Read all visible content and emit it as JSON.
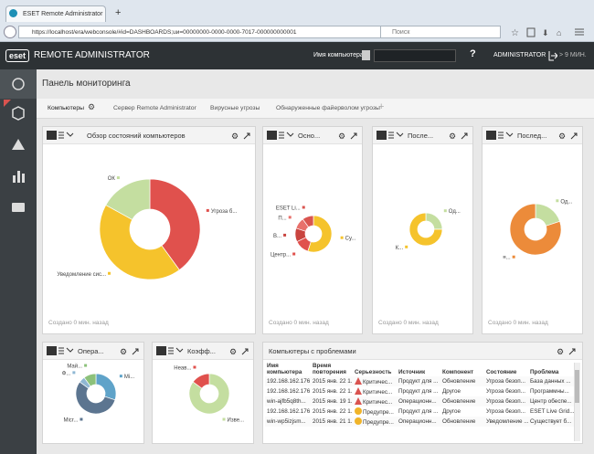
{
  "browser": {
    "tab_title": "ESET Remote Administrator",
    "url": "https://localhost/era/webconsole/#id=DASHBOARDS;uи=00000000-0000-0000-7017-000000000001",
    "search_placeholder": "Поиск"
  },
  "header": {
    "logo": "eset",
    "product": "REMOTE ADMINISTRATOR",
    "computer_name_label": "Имя компьютера",
    "help": "?",
    "user": "ADMINISTRATOR",
    "logout_timer": "> 9 МИН."
  },
  "page": {
    "title": "Панель мониторинга",
    "tabs": [
      "Компьютеры",
      "Сервер Remote Administrator",
      "Вирусные угрозы",
      "Обнаруженные файерволом угрозы"
    ]
  },
  "panels": [
    {
      "title": "Обзор состояний компьютеров",
      "footer": "Создано 0 мин. назад",
      "slices": [
        {
          "label": "Угроза б...",
          "value": 40,
          "color": "#e0514d"
        },
        {
          "label": "Уведомление сис...",
          "value": 43,
          "color": "#f5c32c"
        },
        {
          "label": "ОК",
          "value": 17,
          "color": "#c4dea0"
        }
      ]
    },
    {
      "title": "Осно...",
      "footer": "Создано 0 мин. назад",
      "slices": [
        {
          "label": "Су...",
          "value": 55,
          "color": "#f5c32c"
        },
        {
          "label": "Центр...",
          "value": 13,
          "color": "#e0514d"
        },
        {
          "label": "В...",
          "value": 12,
          "color": "#c9443f"
        },
        {
          "label": "П...",
          "value": 10,
          "color": "#e8706b"
        },
        {
          "label": "ESET Li...",
          "value": 10,
          "color": "#d95550"
        }
      ]
    },
    {
      "title": "После...",
      "footer": "Создано 0 мин. назад",
      "slices": [
        {
          "label": "Од...",
          "value": 25,
          "color": "#c4dea0"
        },
        {
          "label": "К...",
          "value": 75,
          "color": "#f5c32c"
        }
      ]
    },
    {
      "title": "Послед...",
      "footer": "Создано 0 мин. назад",
      "slices": [
        {
          "label": "Од...",
          "value": 20,
          "color": "#c4dea0"
        },
        {
          "label": "≡...",
          "value": 80,
          "color": "#ec8b3a"
        }
      ]
    },
    {
      "title": "Опера...",
      "slices": [
        {
          "label": "Mi...",
          "value": 30,
          "color": "#5fa3c9"
        },
        {
          "label": "Micr...",
          "value": 55,
          "color": "#5c7590"
        },
        {
          "label": "Ф...",
          "value": 5,
          "color": "#8fb7d3"
        },
        {
          "label": "Май...",
          "value": 10,
          "color": "#8cc17a"
        }
      ]
    },
    {
      "title": "Коэфф...",
      "slices": [
        {
          "label": "Изве...",
          "value": 85,
          "color": "#c4dea0"
        },
        {
          "label": "Неав...",
          "value": 15,
          "color": "#e0514d"
        }
      ]
    }
  ],
  "problems_table": {
    "title": "Компьютеры с проблемами",
    "columns": [
      "Имя компьютера",
      "Время повторения",
      "Серьезность",
      "Источник",
      "Компонент",
      "Состояние",
      "Проблема"
    ],
    "severity_icons": [
      "critical",
      "critical",
      "critical",
      "warning",
      "warning"
    ],
    "rows": [
      [
        "192.168.162.176",
        "2015 янв. 22 1...",
        "Критичес...",
        "Продукт для ...",
        "Обновление",
        "Угроза безоп...",
        "База данных ..."
      ],
      [
        "192.168.162.176",
        "2015 янв. 22 1...",
        "Критичес...",
        "Продукт для ...",
        "Другое",
        "Угроза безоп...",
        "Программны..."
      ],
      [
        "win-ajfb5q8th...",
        "2015 янв. 19 1...",
        "Критичес...",
        "Операционн...",
        "Обновление",
        "Угроза безоп...",
        "Центр обеспе..."
      ],
      [
        "192.168.162.176",
        "2015 янв. 22 1...",
        "Предупре...",
        "Продукт для ...",
        "Другое",
        "Угроза безоп...",
        "ESET Live Grid..."
      ],
      [
        "win-wp5izjsm...",
        "2015 янв. 21 1...",
        "Предупре...",
        "Операционн...",
        "Обновление",
        "Уведомление ...",
        "Существует б..."
      ]
    ]
  }
}
